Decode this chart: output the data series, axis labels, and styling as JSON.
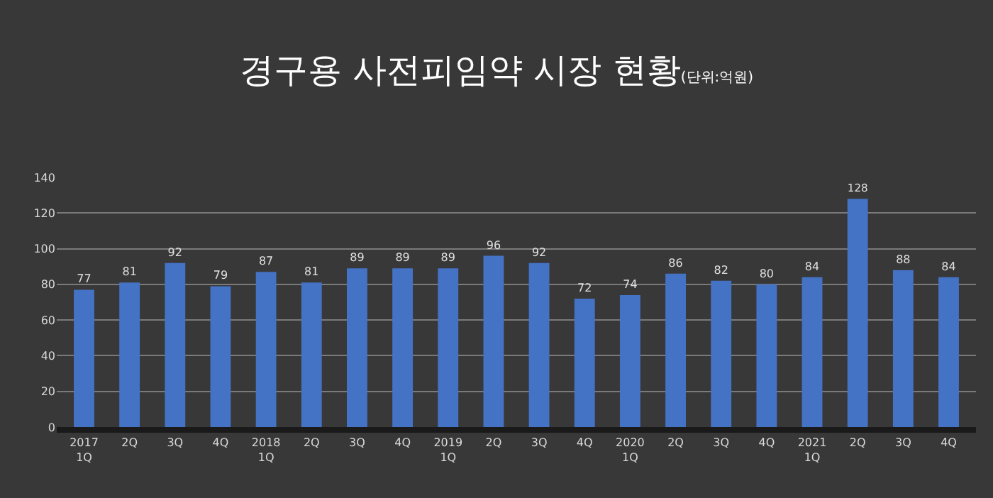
{
  "chart_data": {
    "type": "bar",
    "title": "경구용 사전피임약 시장 현황",
    "subtitle": "(단위:억원)",
    "categories": [
      "2017\n1Q",
      "2Q",
      "3Q",
      "4Q",
      "2018\n1Q",
      "2Q",
      "3Q",
      "4Q",
      "2019\n1Q",
      "2Q",
      "3Q",
      "4Q",
      "2020\n1Q",
      "2Q",
      "3Q",
      "4Q",
      "2021\n1Q",
      "2Q",
      "3Q",
      "4Q"
    ],
    "values": [
      77,
      81,
      92,
      79,
      87,
      81,
      89,
      89,
      89,
      96,
      92,
      72,
      74,
      86,
      82,
      80,
      84,
      128,
      88,
      84
    ],
    "color": "#4472c4",
    "ylim": [
      0,
      140
    ],
    "yticks": [
      0,
      20,
      40,
      60,
      80,
      100,
      120,
      140
    ],
    "grid": "y",
    "data_labels": true
  }
}
